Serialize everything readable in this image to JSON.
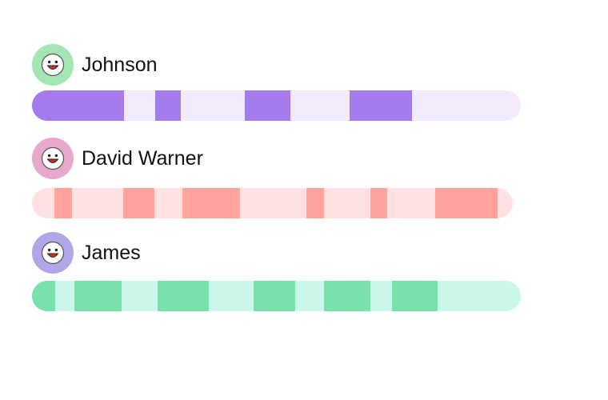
{
  "people": [
    {
      "name": "Johnson",
      "avatar_icon": "smiley-face-icon",
      "avatar_color": "#A3E6B4",
      "track_color": "#F3EAFC",
      "segment_color": "#A47BEC",
      "segments": [
        [
          0.0,
          0.189
        ],
        [
          0.252,
          0.304
        ],
        [
          0.436,
          0.529
        ],
        [
          0.649,
          0.777
        ]
      ]
    },
    {
      "name": "David Warner",
      "avatar_icon": "smiley-face-icon",
      "avatar_color": "#E8A8CC",
      "track_color": "#FFE1E1",
      "segment_color": "#FFA39C",
      "segments": [
        [
          0.047,
          0.083
        ],
        [
          0.189,
          0.254
        ],
        [
          0.313,
          0.433
        ],
        [
          0.571,
          0.607
        ],
        [
          0.703,
          0.738
        ],
        [
          0.838,
          0.969
        ]
      ]
    },
    {
      "name": "James",
      "avatar_icon": "smiley-face-icon",
      "avatar_color": "#B2A6E8",
      "track_color": "#CCF8EC",
      "segment_color": "#79E2AC",
      "segments": [
        [
          0.0,
          0.047
        ],
        [
          0.087,
          0.184
        ],
        [
          0.257,
          0.362
        ],
        [
          0.454,
          0.539
        ],
        [
          0.598,
          0.692
        ],
        [
          0.736,
          0.83
        ]
      ]
    }
  ]
}
